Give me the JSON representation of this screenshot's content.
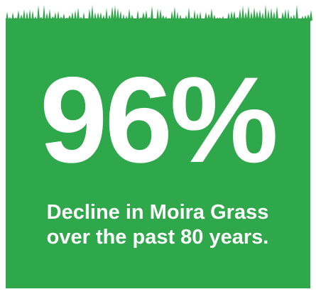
{
  "headline": "96%",
  "caption": {
    "lines": [
      "Decline in Moira Grass",
      "over the past 80 years."
    ]
  }
}
